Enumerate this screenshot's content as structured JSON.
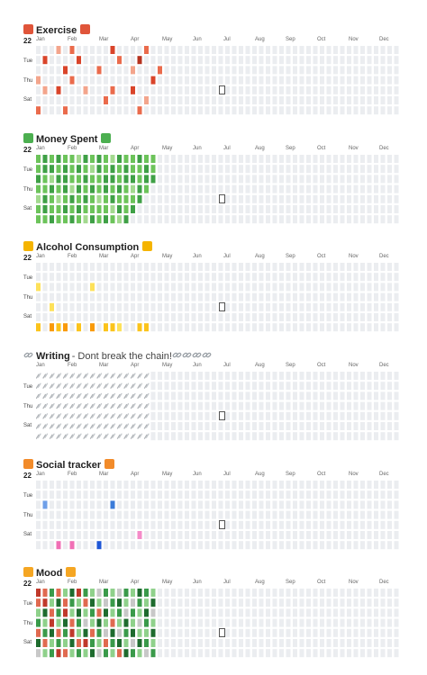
{
  "calendars": [
    {
      "title": "Exercise",
      "subtitle": "",
      "icon": "person-lifting-weights-icon",
      "icon_color": "#e0553a",
      "year": "22",
      "months": [
        "Jan",
        "Feb",
        "Mar",
        "Apr",
        "May",
        "Jun",
        "Jul",
        "Aug",
        "Sep",
        "Oct",
        "Nov",
        "Dec"
      ],
      "days": [
        "Tue",
        "Thu",
        "Sat"
      ],
      "style": "heat",
      "palette": [
        "#ebedf0",
        "#f3a58c",
        "#ea6b4c",
        "#d9442a",
        "#b6321e"
      ],
      "levels": [
        [
          0,
          0,
          0,
          1,
          0,
          0,
          2
        ],
        [
          0,
          3,
          0,
          0,
          1,
          0,
          0
        ],
        [
          0,
          0,
          0,
          0,
          0,
          0,
          0
        ],
        [
          1,
          0,
          0,
          0,
          3,
          0,
          0
        ],
        [
          0,
          0,
          3,
          0,
          0,
          0,
          2
        ],
        [
          2,
          0,
          0,
          2,
          0,
          0,
          0
        ],
        [
          0,
          3,
          0,
          0,
          0,
          0,
          0
        ],
        [
          0,
          0,
          0,
          0,
          1,
          0,
          0
        ],
        [
          0,
          0,
          0,
          0,
          0,
          0,
          0
        ],
        [
          0,
          0,
          2,
          0,
          0,
          0,
          0
        ],
        [
          0,
          0,
          0,
          0,
          0,
          2,
          0
        ],
        [
          3,
          0,
          0,
          0,
          2,
          0,
          0
        ],
        [
          0,
          2,
          0,
          0,
          0,
          0,
          0
        ],
        [
          0,
          0,
          0,
          0,
          0,
          0,
          0
        ],
        [
          0,
          0,
          1,
          0,
          3,
          0,
          0
        ],
        [
          0,
          4,
          0,
          0,
          0,
          0,
          2
        ],
        [
          2,
          0,
          0,
          0,
          0,
          1,
          0
        ],
        [
          0,
          0,
          0,
          3,
          0,
          0,
          0
        ],
        [
          0,
          0,
          2,
          0,
          0,
          0,
          0
        ]
      ],
      "today": "Thu, Jul"
    },
    {
      "title": "Money Spent",
      "subtitle": "",
      "icon": "money-with-wings-icon",
      "icon_color": "#4caf50",
      "year": "22",
      "months": [
        "Jan",
        "Feb",
        "Mar",
        "Apr",
        "May",
        "Jun",
        "Jul",
        "Aug",
        "Sep",
        "Oct",
        "Nov",
        "Dec"
      ],
      "days": [
        "Tue",
        "Thu",
        "Sat"
      ],
      "style": "heat",
      "palette": [
        "#ebedf0",
        "#a3d98f",
        "#6cc35a",
        "#3fa046",
        "#2b7a33"
      ],
      "levels": [
        [
          2,
          2,
          3,
          2,
          1,
          2,
          2
        ],
        [
          3,
          3,
          2,
          2,
          3,
          3,
          2
        ],
        [
          2,
          3,
          1,
          3,
          2,
          2,
          3
        ],
        [
          3,
          2,
          3,
          2,
          1,
          2,
          2
        ],
        [
          2,
          3,
          3,
          3,
          2,
          3,
          2
        ],
        [
          2,
          2,
          2,
          1,
          3,
          2,
          3
        ],
        [
          1,
          3,
          2,
          3,
          2,
          3,
          2
        ],
        [
          3,
          2,
          3,
          2,
          3,
          2,
          1
        ],
        [
          2,
          1,
          2,
          3,
          2,
          2,
          3
        ],
        [
          3,
          3,
          2,
          2,
          1,
          2,
          2
        ],
        [
          2,
          2,
          3,
          3,
          2,
          2,
          3
        ],
        [
          1,
          3,
          3,
          2,
          3,
          1,
          2
        ],
        [
          3,
          2,
          2,
          3,
          2,
          3,
          1
        ],
        [
          2,
          3,
          3,
          2,
          2,
          2,
          3
        ],
        [
          2,
          2,
          3,
          1,
          2,
          3,
          0
        ],
        [
          3,
          2,
          2,
          3,
          3,
          0,
          0
        ],
        [
          2,
          3,
          3,
          2,
          0,
          0,
          0
        ],
        [
          2,
          2,
          3,
          0,
          0,
          0,
          0
        ],
        [
          0,
          0,
          0,
          0,
          0,
          0,
          0
        ]
      ],
      "today": "Thu, Jul"
    },
    {
      "title": "Alcohol Consumption",
      "subtitle": "",
      "icon": "beer-mug-icon",
      "icon_color": "#f5b400",
      "year": "22",
      "months": [
        "Jan",
        "Feb",
        "Mar",
        "Apr",
        "May",
        "Jun",
        "Jul",
        "Aug",
        "Sep",
        "Oct",
        "Nov",
        "Dec"
      ],
      "days": [
        "Tue",
        "Thu",
        "Sat"
      ],
      "style": "heat",
      "palette": [
        "#ebedf0",
        "#fde15a",
        "#fbc31b",
        "#f99a0a",
        "#e27a05"
      ],
      "levels": [
        [
          0,
          0,
          1,
          0,
          0,
          0,
          2
        ],
        [
          0,
          0,
          0,
          0,
          0,
          0,
          0
        ],
        [
          0,
          0,
          0,
          0,
          1,
          0,
          3
        ],
        [
          0,
          0,
          0,
          0,
          0,
          0,
          2
        ],
        [
          0,
          0,
          0,
          0,
          0,
          0,
          3
        ],
        [
          0,
          0,
          0,
          0,
          0,
          0,
          0
        ],
        [
          0,
          0,
          0,
          0,
          0,
          0,
          2
        ],
        [
          0,
          0,
          0,
          0,
          0,
          0,
          0
        ],
        [
          0,
          0,
          1,
          0,
          0,
          0,
          3
        ],
        [
          0,
          0,
          0,
          0,
          0,
          0,
          0
        ],
        [
          0,
          0,
          0,
          0,
          0,
          0,
          2
        ],
        [
          0,
          0,
          0,
          0,
          0,
          0,
          2
        ],
        [
          0,
          0,
          0,
          0,
          0,
          0,
          1
        ],
        [
          0,
          0,
          0,
          0,
          0,
          0,
          0
        ],
        [
          0,
          0,
          0,
          0,
          0,
          0,
          0
        ],
        [
          0,
          0,
          0,
          0,
          0,
          0,
          2
        ],
        [
          0,
          0,
          0,
          0,
          0,
          0,
          2
        ],
        [
          0,
          0,
          0,
          0,
          0,
          0,
          0
        ],
        [
          0,
          0,
          0,
          0,
          0,
          0,
          0
        ]
      ],
      "today": "Thu, Jul"
    },
    {
      "title": "Writing",
      "subtitle": "- Dont break the chain!",
      "icon": "link-icon",
      "icon_color": "#9aa0a6",
      "year": "",
      "months": [
        "Jan",
        "Feb",
        "Mar",
        "Apr",
        "May",
        "Jun",
        "Jul",
        "Aug",
        "Sep",
        "Oct",
        "Nov",
        "Dec"
      ],
      "days": [
        "Tue",
        "Thu",
        "Sat"
      ],
      "style": "chain",
      "chain_weeks": 17,
      "today": "Thu, Jul"
    },
    {
      "title": "Social tracker",
      "subtitle": "",
      "icon": "people-icon",
      "icon_color": "#f28b2a",
      "year": "22",
      "months": [
        "Jan",
        "Feb",
        "Mar",
        "Apr",
        "May",
        "Jun",
        "Jul",
        "Aug",
        "Sep",
        "Oct",
        "Nov",
        "Dec"
      ],
      "days": [
        "Tue",
        "Thu",
        "Sat"
      ],
      "style": "marks",
      "marks": [
        {
          "week": 1,
          "day": 2,
          "color": "#6f9fe8"
        },
        {
          "week": 3,
          "day": 6,
          "color": "#f06fb5"
        },
        {
          "week": 5,
          "day": 6,
          "color": "#f06fb5"
        },
        {
          "week": 9,
          "day": 6,
          "color": "#1d56d6"
        },
        {
          "week": 11,
          "day": 2,
          "color": "#3b7bd8"
        },
        {
          "week": 15,
          "day": 5,
          "color": "#f48bc8"
        }
      ],
      "today": "Thu, Jul"
    },
    {
      "title": "Mood",
      "subtitle": "",
      "icon": "smiling-face-icon",
      "icon_color": "#f5a623",
      "year": "22",
      "months": [
        "Jan",
        "Feb",
        "Mar",
        "Apr",
        "May",
        "Jun",
        "Jul",
        "Aug",
        "Sep",
        "Oct",
        "Nov",
        "Dec"
      ],
      "days": [
        "Tue",
        "Thu",
        "Sat"
      ],
      "style": "heat",
      "palette": [
        "#ebedf0",
        "#c8c8c8",
        "#e06a50",
        "#c0392b",
        "#8fd18b",
        "#3a9a4a",
        "#1e6b2e"
      ],
      "levels": [
        [
          3,
          2,
          4,
          5,
          2,
          6,
          1
        ],
        [
          2,
          3,
          6,
          4,
          5,
          2,
          4
        ],
        [
          5,
          4,
          2,
          3,
          6,
          4,
          5
        ],
        [
          2,
          6,
          5,
          4,
          2,
          5,
          3
        ],
        [
          4,
          2,
          3,
          6,
          5,
          4,
          2
        ],
        [
          6,
          5,
          4,
          2,
          3,
          6,
          4
        ],
        [
          3,
          4,
          6,
          5,
          4,
          2,
          5
        ],
        [
          5,
          2,
          4,
          1,
          6,
          3,
          4
        ],
        [
          4,
          6,
          5,
          4,
          2,
          5,
          6
        ],
        [
          1,
          4,
          2,
          6,
          5,
          4,
          1
        ],
        [
          5,
          1,
          6,
          4,
          1,
          2,
          5
        ],
        [
          4,
          5,
          4,
          2,
          6,
          5,
          4
        ],
        [
          1,
          6,
          5,
          4,
          1,
          6,
          2
        ],
        [
          5,
          4,
          1,
          6,
          5,
          4,
          6
        ],
        [
          4,
          1,
          5,
          4,
          6,
          1,
          5
        ],
        [
          6,
          5,
          4,
          1,
          4,
          6,
          4
        ],
        [
          5,
          4,
          6,
          5,
          4,
          5,
          1
        ],
        [
          4,
          6,
          1,
          4,
          6,
          4,
          5
        ],
        [
          0,
          0,
          0,
          0,
          0,
          0,
          0
        ]
      ],
      "today": "Thu, Jul"
    }
  ]
}
